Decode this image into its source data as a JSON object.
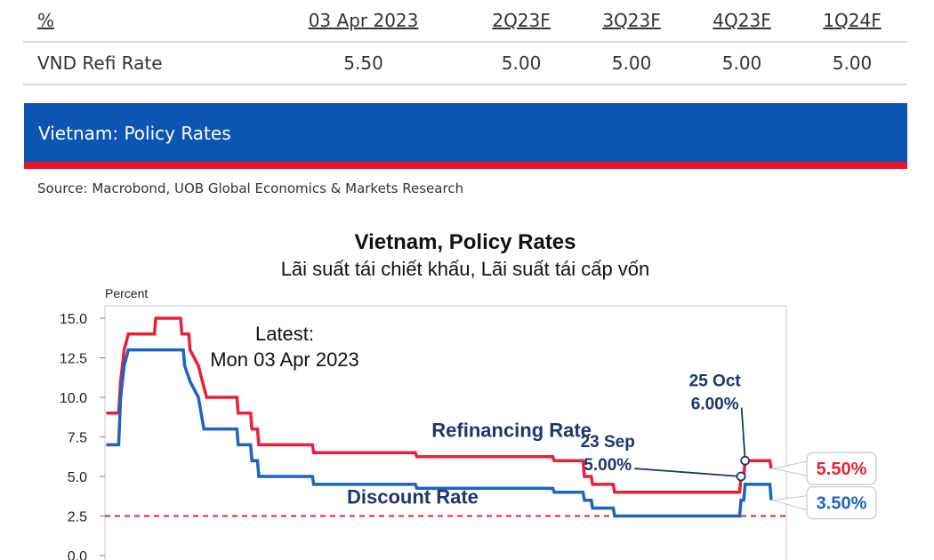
{
  "table": {
    "headers": [
      "%",
      "03 Apr 2023",
      "2Q23F",
      "3Q23F",
      "4Q23F",
      "1Q24F"
    ],
    "rows": [
      {
        "label": "VND Refi Rate",
        "values": [
          "5.50",
          "5.00",
          "5.00",
          "5.00",
          "5.00"
        ]
      }
    ]
  },
  "banner": {
    "title": "Vietnam: Policy Rates"
  },
  "source": "Source: Macrobond, UOB Global Economics & Markets Research",
  "colors": {
    "refinancing": "#e8203a",
    "discount": "#1c63c4",
    "banner": "#0d55b3",
    "banner_stripe": "#e8152b"
  },
  "chart_data": {
    "type": "line",
    "title": "Vietnam, Policy Rates",
    "subtitle": "Lãi suất tái chiết khấu, Lãi suất tái cấp vốn",
    "ylabel": "Percent",
    "ylim": [
      0,
      15
    ],
    "yticks": [
      "0.0",
      "2.5",
      "5.0",
      "7.5",
      "10.0",
      "12.5",
      "15.0"
    ],
    "grid": false,
    "latest_note": [
      "Latest:",
      "Mon 03 Apr 2023"
    ],
    "reference_line": {
      "value": 2.5,
      "style": "dashed",
      "color": "#e8203a"
    },
    "series": [
      {
        "name": "Refinancing Rate",
        "color": "#e8203a",
        "points": [
          [
            2007.75,
            9
          ],
          [
            2008.2,
            9
          ],
          [
            2008.27,
            11
          ],
          [
            2008.4,
            13
          ],
          [
            2008.55,
            14
          ],
          [
            2009.5,
            14
          ],
          [
            2009.55,
            15
          ],
          [
            2010.45,
            15
          ],
          [
            2010.5,
            14
          ],
          [
            2010.75,
            14
          ],
          [
            2010.8,
            13
          ],
          [
            2011.1,
            12
          ],
          [
            2011.25,
            11
          ],
          [
            2011.4,
            10
          ],
          [
            2012.5,
            10
          ],
          [
            2012.55,
            9
          ],
          [
            2013.0,
            9
          ],
          [
            2013.05,
            8
          ],
          [
            2013.25,
            8
          ],
          [
            2013.3,
            7
          ],
          [
            2015.25,
            7
          ],
          [
            2015.3,
            6.5
          ],
          [
            2019.0,
            6.5
          ],
          [
            2019.05,
            6.25
          ],
          [
            2024.0,
            6.25
          ],
          [
            2024.05,
            6.0
          ],
          [
            2025.1,
            6.0
          ],
          [
            2025.15,
            5.0
          ],
          [
            2025.4,
            5.0
          ],
          [
            2025.45,
            4.5
          ],
          [
            2026.2,
            4.5
          ],
          [
            2026.25,
            4.0
          ],
          [
            2030.8,
            4.0
          ],
          [
            2030.85,
            5.0
          ],
          [
            2030.95,
            5.0
          ],
          [
            2031.0,
            6.0
          ],
          [
            2031.9,
            6.0
          ],
          [
            2031.95,
            5.5
          ]
        ]
      },
      {
        "name": "Discount Rate",
        "color": "#1c63c4",
        "points": [
          [
            2007.75,
            7
          ],
          [
            2008.2,
            7
          ],
          [
            2008.27,
            10
          ],
          [
            2008.4,
            12
          ],
          [
            2008.55,
            13
          ],
          [
            2010.55,
            13
          ],
          [
            2010.6,
            12
          ],
          [
            2010.8,
            11
          ],
          [
            2011.1,
            10
          ],
          [
            2011.2,
            9
          ],
          [
            2011.3,
            8
          ],
          [
            2012.5,
            8
          ],
          [
            2012.55,
            7
          ],
          [
            2013.0,
            7
          ],
          [
            2013.05,
            6
          ],
          [
            2013.25,
            6
          ],
          [
            2013.3,
            5
          ],
          [
            2015.25,
            5
          ],
          [
            2015.3,
            4.5
          ],
          [
            2019.0,
            4.5
          ],
          [
            2019.05,
            4.25
          ],
          [
            2024.0,
            4.25
          ],
          [
            2024.05,
            4.0
          ],
          [
            2025.1,
            4.0
          ],
          [
            2025.15,
            3.5
          ],
          [
            2025.4,
            3.5
          ],
          [
            2025.45,
            3.0
          ],
          [
            2026.2,
            3.0
          ],
          [
            2026.25,
            2.5
          ],
          [
            2030.8,
            2.5
          ],
          [
            2030.85,
            3.5
          ],
          [
            2030.95,
            3.5
          ],
          [
            2031.0,
            4.5
          ],
          [
            2031.9,
            4.5
          ],
          [
            2031.95,
            3.5
          ]
        ]
      }
    ],
    "series_labels": [
      {
        "text": "Refinancing Rate",
        "series": 0,
        "at": [
          2022.5,
          7.5
        ]
      },
      {
        "text": "Discount Rate",
        "series": 1,
        "at": [
          2018.9,
          3.3
        ]
      }
    ],
    "annotations": [
      {
        "lines": [
          "25 Oct",
          "6.00%"
        ],
        "point": [
          2031.0,
          6.0
        ],
        "text_at": [
          2029.9,
          10.7
        ]
      },
      {
        "lines": [
          "23 Sep",
          "5.00%"
        ],
        "point": [
          2030.85,
          5.0
        ],
        "text_at": [
          2026.0,
          6.85
        ]
      }
    ],
    "end_callouts": [
      {
        "text": "5.50%",
        "value": 5.5,
        "series": 0
      },
      {
        "text": "3.50%",
        "value": 3.5,
        "series": 1
      }
    ],
    "x_range": [
      2007.7,
      2032.5
    ]
  }
}
